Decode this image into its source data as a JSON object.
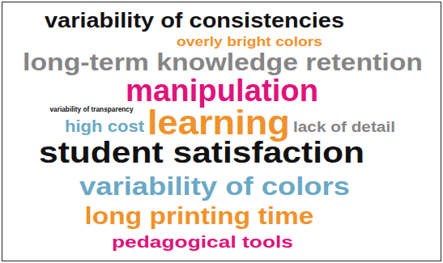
{
  "chart_data": {
    "type": "wordcloud",
    "words": [
      "variability of consistencies",
      "overly bright colors",
      "long-term knowledge retention",
      "manipulation",
      "variability of transparency",
      "high cost",
      "learning",
      "lack of detail",
      "student satisfaction",
      "variability of colors",
      "long printing time",
      "pedagogical tools"
    ],
    "colors": [
      "#111111",
      "#f0922b",
      "#858585",
      "#e0137b",
      "#111111",
      "#6aa9c5",
      "#f0922b",
      "#858585",
      "#111111",
      "#6aa9c5",
      "#f0922b",
      "#e0137b"
    ]
  }
}
